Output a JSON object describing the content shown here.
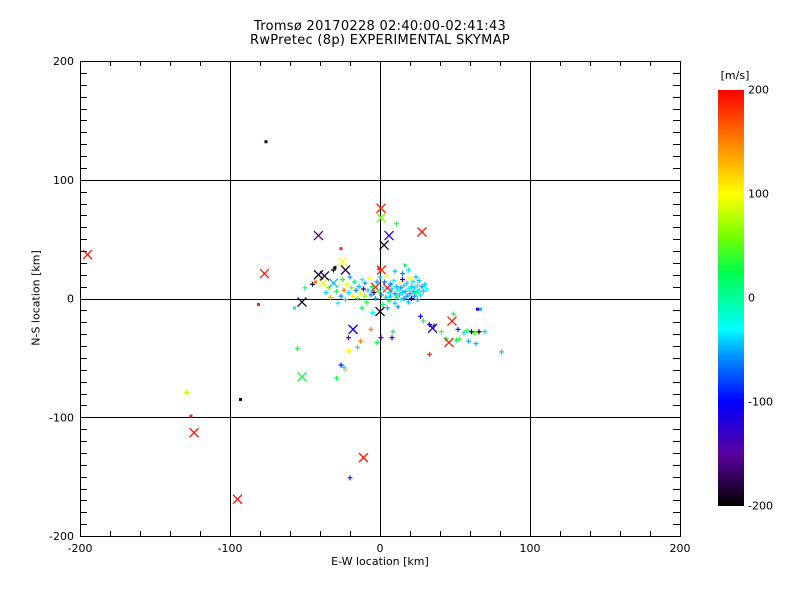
{
  "title": {
    "line1": "Tromsø 20170228 02:40:00-02:41:43",
    "line2": "RwPretec (8p) EXPERIMENTAL SKYMAP"
  },
  "chart_data": {
    "type": "scatter",
    "title": "Tromsø 20170228 02:40:00-02:41:43",
    "subtitle": "RwPretec (8p) EXPERIMENTAL SKYMAP",
    "xlabel": "E-W location [km]",
    "ylabel": "N-S location [km]",
    "xlim": [
      -200,
      200
    ],
    "ylim": [
      -200,
      200
    ],
    "x_major_ticks": [
      -200,
      -100,
      0,
      100,
      200
    ],
    "y_major_ticks": [
      -200,
      -100,
      0,
      100,
      200
    ],
    "x_minor_step_km": 20,
    "y_minor_step_km": 10,
    "grid": true,
    "axis_color": "#000000",
    "background": "#ffffff",
    "colorbar": {
      "label": "[m/s]",
      "min": -200,
      "max": 200,
      "ticks": [
        200,
        100,
        0,
        -100,
        -200
      ],
      "stops": [
        [
          -200,
          "#000000"
        ],
        [
          -150,
          "#5a00a0"
        ],
        [
          -100,
          "#0000ff"
        ],
        [
          -55,
          "#0096ff"
        ],
        [
          -30,
          "#00ffff"
        ],
        [
          -5,
          "#00ffaa"
        ],
        [
          25,
          "#00ff4b"
        ],
        [
          60,
          "#78ff00"
        ],
        [
          100,
          "#ffff00"
        ],
        [
          150,
          "#ff8200"
        ],
        [
          200,
          "#ff0000"
        ]
      ]
    },
    "point_format": "[x_km, y_km, velocity_m_per_s, marker]  marker: x=large cross, +=small plus, .=dot",
    "points": [
      [
        -76,
        132,
        -190,
        "."
      ],
      [
        0.7,
        76,
        190,
        "x"
      ],
      [
        0.7,
        68,
        60,
        "x"
      ],
      [
        11,
        63,
        30,
        "+"
      ],
      [
        28,
        56,
        190,
        "x"
      ],
      [
        -41,
        53,
        -155,
        "x"
      ],
      [
        6,
        53,
        -125,
        "x"
      ],
      [
        2.7,
        45,
        -195,
        "x"
      ],
      [
        -26,
        42,
        185,
        "."
      ],
      [
        -25,
        31,
        100,
        "x"
      ],
      [
        -30,
        26,
        -190,
        "."
      ],
      [
        -0.7,
        25,
        185,
        "."
      ],
      [
        16.7,
        28,
        20,
        "."
      ],
      [
        -195,
        37,
        195,
        "x"
      ],
      [
        -77,
        21,
        190,
        "x"
      ],
      [
        -81,
        -5,
        185,
        "."
      ],
      [
        -57,
        -8,
        10,
        "."
      ],
      [
        -52,
        -3,
        -190,
        "x"
      ],
      [
        -50,
        9,
        20,
        "+"
      ],
      [
        -45,
        12,
        -180,
        "+"
      ],
      [
        -43,
        14,
        150,
        "."
      ],
      [
        -41,
        20,
        -190,
        "x"
      ],
      [
        -38,
        13,
        95,
        "x"
      ],
      [
        -37,
        19,
        -185,
        "x"
      ],
      [
        -36,
        5,
        -40,
        "+"
      ],
      [
        -34,
        9,
        60,
        "+"
      ],
      [
        -33,
        1,
        130,
        "+"
      ],
      [
        -31,
        13,
        -45,
        "x"
      ],
      [
        -31,
        24,
        -190,
        "+"
      ],
      [
        -29,
        6,
        30,
        "+"
      ],
      [
        -28,
        -4,
        -30,
        "+"
      ],
      [
        -27,
        11,
        100,
        "+"
      ],
      [
        -26,
        2,
        -55,
        "+"
      ],
      [
        -25,
        16,
        40,
        "+"
      ],
      [
        -24,
        7,
        160,
        "+"
      ],
      [
        -23,
        24,
        -180,
        "x"
      ],
      [
        -23,
        -1,
        20,
        "+"
      ],
      [
        -22,
        12,
        90,
        "+"
      ],
      [
        -21,
        5,
        -35,
        "+"
      ],
      [
        -20,
        18,
        -50,
        "+"
      ],
      [
        -19,
        9,
        60,
        "+"
      ],
      [
        -18,
        2,
        110,
        "+"
      ],
      [
        -17,
        14,
        15,
        "+"
      ],
      [
        -16,
        7,
        -60,
        "+"
      ],
      [
        -15,
        0,
        45,
        "+"
      ],
      [
        -14,
        10,
        -45,
        "+"
      ],
      [
        -13,
        4,
        95,
        "+"
      ],
      [
        -12,
        16,
        -30,
        "+"
      ],
      [
        -12,
        -8,
        25,
        "+"
      ],
      [
        -11,
        8,
        -170,
        "+"
      ],
      [
        -10,
        2,
        60,
        "+"
      ],
      [
        -10,
        13,
        -55,
        "+"
      ],
      [
        -9,
        -3,
        35,
        "+"
      ],
      [
        -8,
        7,
        -40,
        "+"
      ],
      [
        -7,
        17,
        100,
        "+"
      ],
      [
        -6,
        3,
        -60,
        "+"
      ],
      [
        -5,
        10,
        20,
        "+"
      ],
      [
        -5,
        -12,
        -30,
        "+"
      ],
      [
        -4,
        5,
        -170,
        "+"
      ],
      [
        -3,
        9.5,
        185,
        "x"
      ],
      [
        -3,
        0,
        -45,
        "+"
      ],
      [
        -2,
        14,
        -55,
        "+"
      ],
      [
        -1,
        6,
        40,
        "+"
      ],
      [
        0,
        -11,
        -190,
        "x"
      ],
      [
        0,
        18,
        -40,
        "+"
      ],
      [
        1,
        3,
        -55,
        "+"
      ],
      [
        1,
        24,
        190,
        "x"
      ],
      [
        2,
        9,
        -35,
        "+"
      ],
      [
        2,
        -5,
        15,
        "+"
      ],
      [
        3,
        14,
        -60,
        "+"
      ],
      [
        4,
        1,
        -45,
        "+"
      ],
      [
        4,
        19,
        100,
        "+"
      ],
      [
        5,
        9,
        190,
        "x"
      ],
      [
        5,
        -8,
        -50,
        "+"
      ],
      [
        6,
        5,
        -35,
        "+"
      ],
      [
        6,
        -2,
        25,
        "+"
      ],
      [
        7,
        12,
        -55,
        "+"
      ],
      [
        7,
        2,
        -40,
        "+"
      ],
      [
        8,
        8,
        -45,
        "+"
      ],
      [
        9,
        15,
        -30,
        "+"
      ],
      [
        10,
        4,
        -55,
        "+"
      ],
      [
        10,
        -4,
        -40,
        "+"
      ],
      [
        10,
        23,
        -45,
        "+"
      ],
      [
        11,
        10,
        -45,
        "+"
      ],
      [
        11,
        1,
        20,
        "+"
      ],
      [
        12,
        7,
        -35,
        "+"
      ],
      [
        12,
        -7,
        -55,
        "+"
      ],
      [
        13,
        13,
        100,
        "+"
      ],
      [
        13,
        3,
        -45,
        "+"
      ],
      [
        14,
        -1,
        -30,
        "+"
      ],
      [
        14,
        9,
        -60,
        "+"
      ],
      [
        15,
        5,
        -40,
        "+"
      ],
      [
        15,
        16,
        -130,
        "+"
      ],
      [
        15,
        21,
        -60,
        "+"
      ],
      [
        16,
        0,
        -50,
        "+"
      ],
      [
        16,
        11,
        -35,
        "+"
      ],
      [
        17,
        6,
        -45,
        "+"
      ],
      [
        18,
        2,
        -55,
        "+"
      ],
      [
        18,
        13,
        -40,
        "+"
      ],
      [
        19,
        8,
        -30,
        "+"
      ],
      [
        19,
        -3,
        -45,
        "+"
      ],
      [
        19,
        24,
        -35,
        "+"
      ],
      [
        20,
        17,
        95,
        "+"
      ],
      [
        20,
        4,
        -55,
        "+"
      ],
      [
        21,
        10,
        -40,
        "+"
      ],
      [
        21,
        0,
        -130,
        "+"
      ],
      [
        22,
        6,
        -45,
        "+"
      ],
      [
        22,
        14,
        -35,
        "+"
      ],
      [
        23,
        2,
        -55,
        "+"
      ],
      [
        23,
        9,
        -40,
        "+"
      ],
      [
        24,
        18,
        -45,
        "+"
      ],
      [
        24,
        5,
        25,
        "+"
      ],
      [
        25,
        11,
        -30,
        "+"
      ],
      [
        25,
        -1,
        -55,
        "+"
      ],
      [
        26,
        7,
        -40,
        "+"
      ],
      [
        26,
        15,
        -45,
        "+"
      ],
      [
        27,
        3,
        -35,
        "+"
      ],
      [
        28,
        10,
        -55,
        "+"
      ],
      [
        29,
        6,
        -40,
        "+"
      ],
      [
        30,
        12,
        -45,
        "+"
      ],
      [
        31,
        8,
        -30,
        "+"
      ],
      [
        -18,
        -26,
        -100,
        "x"
      ],
      [
        -6,
        -26,
        150,
        "+"
      ],
      [
        -21,
        -33,
        -140,
        "+"
      ],
      [
        0.7,
        -33,
        -140,
        "+"
      ],
      [
        8.7,
        -28,
        30,
        "+"
      ],
      [
        8,
        -33,
        -110,
        "+"
      ],
      [
        -2,
        -37,
        25,
        "+"
      ],
      [
        -13,
        -36,
        150,
        "+"
      ],
      [
        -15,
        -41,
        30,
        "+"
      ],
      [
        -21,
        -44,
        100,
        "+"
      ],
      [
        -55,
        -42,
        35,
        "+"
      ],
      [
        27,
        -15,
        -100,
        "+"
      ],
      [
        29,
        -19,
        30,
        "+"
      ],
      [
        33,
        -22,
        -140,
        "+"
      ],
      [
        36,
        -23,
        -150,
        "+"
      ],
      [
        35,
        -25,
        -110,
        "x"
      ],
      [
        41,
        -28,
        40,
        "+"
      ],
      [
        44,
        -34,
        30,
        "+"
      ],
      [
        46,
        -37,
        190,
        "x"
      ],
      [
        48,
        -19,
        190,
        "x"
      ],
      [
        49,
        -13,
        30,
        "+"
      ],
      [
        51,
        -35,
        25,
        "+"
      ],
      [
        52,
        -26,
        -90,
        "+"
      ],
      [
        53,
        -34,
        45,
        "+"
      ],
      [
        56,
        -29,
        -40,
        "+"
      ],
      [
        58,
        -27,
        35,
        "+"
      ],
      [
        59,
        -36,
        -45,
        "+"
      ],
      [
        61,
        -28,
        -190,
        "+"
      ],
      [
        63,
        -29,
        40,
        "+"
      ],
      [
        64,
        -38,
        -45,
        "+"
      ],
      [
        66,
        -28,
        -195,
        "+"
      ],
      [
        65,
        -9,
        -100,
        "."
      ],
      [
        67,
        -9,
        -45,
        "."
      ],
      [
        70,
        -28,
        -40,
        "+"
      ],
      [
        81,
        -45,
        -45,
        "+"
      ],
      [
        33,
        -47,
        185,
        "+"
      ],
      [
        -129,
        -79,
        80,
        "+"
      ],
      [
        -93,
        -85,
        -195,
        "."
      ],
      [
        -126,
        -99,
        190,
        "."
      ],
      [
        -124,
        -113,
        195,
        "x"
      ],
      [
        -52,
        -66,
        30,
        "x"
      ],
      [
        -29,
        -67,
        30,
        "+"
      ],
      [
        -26,
        -56,
        -90,
        "+"
      ],
      [
        -24,
        -58,
        -40,
        "+"
      ],
      [
        -23,
        -60,
        120,
        "+"
      ],
      [
        -11,
        -134,
        190,
        "x"
      ],
      [
        -20,
        -151,
        -90,
        "+"
      ],
      [
        -95,
        -169,
        195,
        "x"
      ]
    ]
  }
}
